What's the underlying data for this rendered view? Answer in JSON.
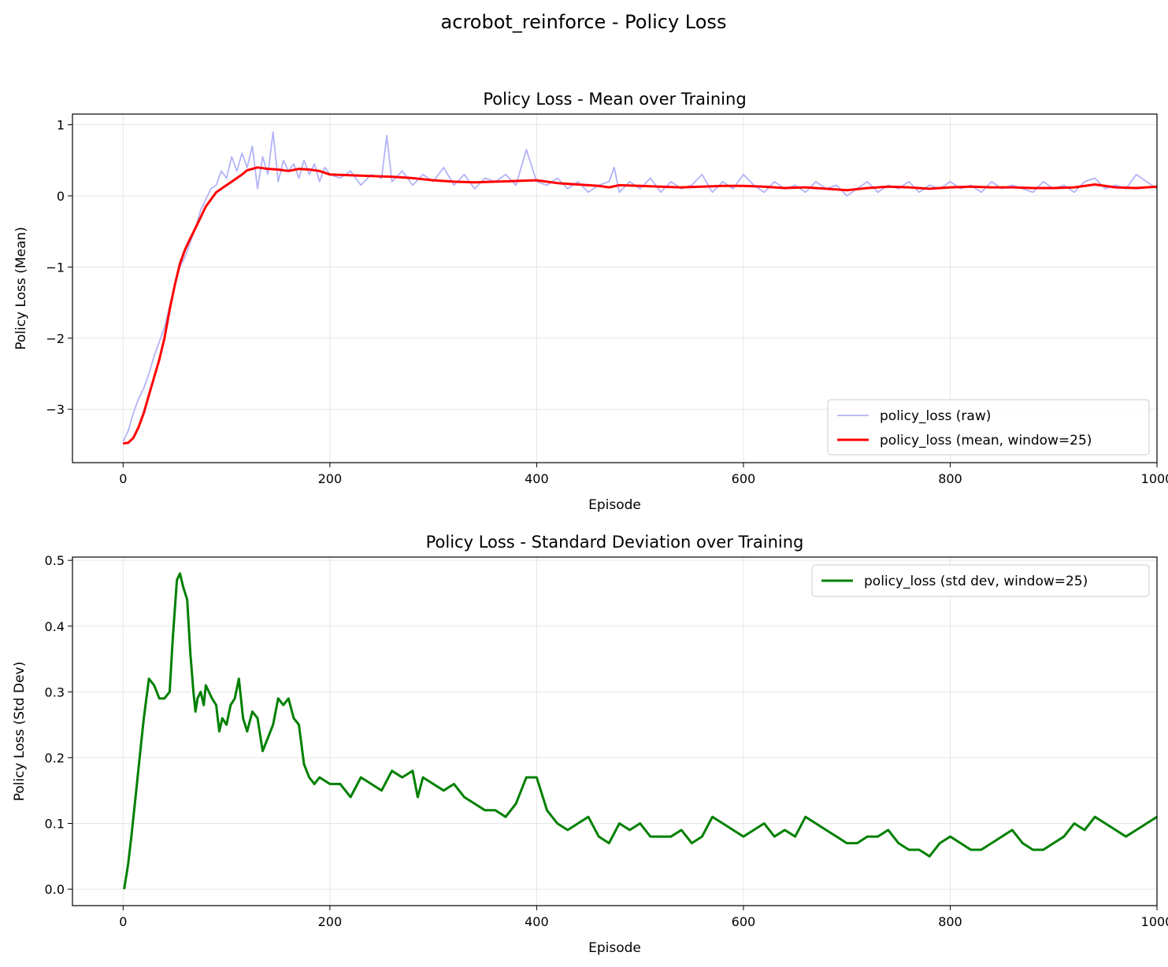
{
  "figure": {
    "title": "acrobot_reinforce - Policy Loss"
  },
  "chart_data": [
    {
      "type": "line",
      "title": "Policy Loss - Mean over Training",
      "xlabel": "Episode",
      "ylabel": "Policy Loss (Mean)",
      "xlim": [
        -49,
        1000
      ],
      "ylim": [
        -3.75,
        1.15
      ],
      "xticks": [
        0,
        200,
        400,
        600,
        800,
        1000
      ],
      "yticks": [
        -3,
        -2,
        -1,
        0,
        1
      ],
      "ytick_labels": [
        "−3",
        "−2",
        "−1",
        "0",
        "1"
      ],
      "grid": true,
      "legend_position": "lower right",
      "series": [
        {
          "name": "policy_loss (raw)",
          "color": "#b3b3f7",
          "linewidth": 1.8,
          "x": [
            0,
            5,
            10,
            15,
            20,
            25,
            30,
            35,
            40,
            45,
            50,
            55,
            60,
            65,
            70,
            75,
            80,
            85,
            90,
            95,
            100,
            105,
            110,
            115,
            120,
            125,
            130,
            135,
            140,
            145,
            150,
            155,
            160,
            165,
            170,
            175,
            180,
            185,
            190,
            195,
            200,
            210,
            220,
            230,
            240,
            250,
            255,
            260,
            270,
            280,
            290,
            300,
            310,
            320,
            330,
            340,
            350,
            360,
            370,
            380,
            390,
            400,
            410,
            420,
            430,
            440,
            450,
            460,
            470,
            475,
            480,
            490,
            500,
            510,
            520,
            530,
            540,
            550,
            560,
            570,
            580,
            590,
            600,
            610,
            620,
            630,
            640,
            650,
            660,
            670,
            680,
            690,
            700,
            710,
            720,
            730,
            740,
            750,
            760,
            770,
            780,
            790,
            800,
            810,
            820,
            830,
            840,
            850,
            860,
            870,
            880,
            890,
            900,
            910,
            920,
            930,
            940,
            950,
            960,
            970,
            980,
            990,
            1000
          ],
          "y": [
            -3.45,
            -3.3,
            -3.05,
            -2.85,
            -2.7,
            -2.5,
            -2.25,
            -2.05,
            -1.85,
            -1.55,
            -1.25,
            -1.0,
            -0.85,
            -0.65,
            -0.45,
            -0.2,
            -0.05,
            0.1,
            0.15,
            0.35,
            0.25,
            0.55,
            0.35,
            0.6,
            0.4,
            0.7,
            0.1,
            0.55,
            0.3,
            0.9,
            0.2,
            0.5,
            0.35,
            0.45,
            0.25,
            0.5,
            0.3,
            0.45,
            0.2,
            0.4,
            0.3,
            0.25,
            0.35,
            0.15,
            0.3,
            0.25,
            0.85,
            0.2,
            0.35,
            0.15,
            0.3,
            0.2,
            0.4,
            0.15,
            0.3,
            0.1,
            0.25,
            0.2,
            0.3,
            0.15,
            0.65,
            0.2,
            0.15,
            0.25,
            0.1,
            0.2,
            0.05,
            0.15,
            0.2,
            0.4,
            0.05,
            0.2,
            0.1,
            0.25,
            0.05,
            0.2,
            0.1,
            0.15,
            0.3,
            0.05,
            0.2,
            0.1,
            0.3,
            0.15,
            0.05,
            0.2,
            0.1,
            0.15,
            0.05,
            0.2,
            0.1,
            0.15,
            0.0,
            0.1,
            0.2,
            0.05,
            0.15,
            0.1,
            0.2,
            0.05,
            0.15,
            0.1,
            0.2,
            0.1,
            0.15,
            0.05,
            0.2,
            0.1,
            0.15,
            0.1,
            0.05,
            0.2,
            0.1,
            0.15,
            0.05,
            0.2,
            0.25,
            0.1,
            0.15,
            0.1,
            0.3,
            0.2,
            0.1
          ]
        },
        {
          "name": "policy_loss (mean, window=25)",
          "color": "#ff0000",
          "linewidth": 3,
          "x": [
            0,
            5,
            10,
            15,
            20,
            25,
            30,
            35,
            40,
            45,
            50,
            55,
            60,
            65,
            70,
            75,
            80,
            85,
            90,
            95,
            100,
            105,
            110,
            115,
            120,
            130,
            140,
            150,
            160,
            170,
            180,
            190,
            200,
            220,
            240,
            260,
            280,
            300,
            320,
            340,
            360,
            380,
            400,
            420,
            440,
            460,
            470,
            480,
            500,
            520,
            540,
            560,
            580,
            600,
            620,
            640,
            660,
            680,
            700,
            720,
            740,
            760,
            780,
            800,
            820,
            840,
            860,
            880,
            900,
            920,
            940,
            960,
            980,
            1000
          ],
          "y": [
            -3.48,
            -3.47,
            -3.4,
            -3.25,
            -3.05,
            -2.8,
            -2.55,
            -2.3,
            -2.0,
            -1.6,
            -1.25,
            -0.95,
            -0.75,
            -0.6,
            -0.45,
            -0.3,
            -0.15,
            -0.05,
            0.05,
            0.1,
            0.15,
            0.2,
            0.25,
            0.3,
            0.36,
            0.4,
            0.38,
            0.37,
            0.35,
            0.38,
            0.37,
            0.35,
            0.3,
            0.29,
            0.28,
            0.27,
            0.25,
            0.22,
            0.2,
            0.19,
            0.2,
            0.21,
            0.22,
            0.18,
            0.16,
            0.14,
            0.12,
            0.15,
            0.14,
            0.13,
            0.12,
            0.13,
            0.14,
            0.14,
            0.13,
            0.11,
            0.12,
            0.1,
            0.08,
            0.11,
            0.13,
            0.12,
            0.1,
            0.12,
            0.13,
            0.12,
            0.12,
            0.11,
            0.11,
            0.12,
            0.16,
            0.12,
            0.11,
            0.13
          ]
        }
      ]
    },
    {
      "type": "line",
      "title": "Policy Loss - Standard Deviation over Training",
      "xlabel": "Episode",
      "ylabel": "Policy Loss (Std Dev)",
      "xlim": [
        -49,
        1000
      ],
      "ylim": [
        -0.025,
        0.505
      ],
      "xticks": [
        0,
        200,
        400,
        600,
        800,
        1000
      ],
      "yticks": [
        0.0,
        0.1,
        0.2,
        0.3,
        0.4,
        0.5
      ],
      "ytick_labels": [
        "0.0",
        "0.1",
        "0.2",
        "0.3",
        "0.4",
        "0.5"
      ],
      "grid": true,
      "legend_position": "upper right",
      "series": [
        {
          "name": "policy_loss (std dev, window=25)",
          "color": "#008000",
          "linewidth": 3,
          "x": [
            1,
            3,
            5,
            8,
            12,
            16,
            20,
            25,
            30,
            35,
            40,
            45,
            48,
            52,
            55,
            58,
            62,
            65,
            68,
            70,
            72,
            75,
            78,
            80,
            83,
            86,
            90,
            93,
            96,
            100,
            104,
            108,
            112,
            116,
            120,
            125,
            130,
            135,
            140,
            145,
            150,
            155,
            160,
            165,
            170,
            175,
            180,
            185,
            190,
            200,
            210,
            220,
            230,
            240,
            250,
            260,
            270,
            280,
            285,
            290,
            300,
            310,
            320,
            330,
            340,
            350,
            360,
            370,
            380,
            390,
            400,
            410,
            420,
            430,
            440,
            450,
            460,
            470,
            480,
            490,
            500,
            510,
            520,
            530,
            540,
            550,
            560,
            570,
            580,
            590,
            600,
            610,
            620,
            630,
            640,
            650,
            660,
            670,
            680,
            690,
            700,
            710,
            720,
            730,
            740,
            750,
            760,
            770,
            780,
            790,
            800,
            810,
            820,
            830,
            840,
            850,
            860,
            870,
            880,
            890,
            900,
            910,
            920,
            930,
            940,
            950,
            960,
            970,
            980,
            990,
            1000
          ],
          "y": [
            0.0,
            0.02,
            0.04,
            0.08,
            0.14,
            0.2,
            0.26,
            0.32,
            0.31,
            0.29,
            0.29,
            0.3,
            0.38,
            0.47,
            0.48,
            0.46,
            0.44,
            0.36,
            0.3,
            0.27,
            0.29,
            0.3,
            0.28,
            0.31,
            0.3,
            0.29,
            0.28,
            0.24,
            0.26,
            0.25,
            0.28,
            0.29,
            0.32,
            0.26,
            0.24,
            0.27,
            0.26,
            0.21,
            0.23,
            0.25,
            0.29,
            0.28,
            0.29,
            0.26,
            0.25,
            0.19,
            0.17,
            0.16,
            0.17,
            0.16,
            0.16,
            0.14,
            0.17,
            0.16,
            0.15,
            0.18,
            0.17,
            0.18,
            0.14,
            0.17,
            0.16,
            0.15,
            0.16,
            0.14,
            0.13,
            0.12,
            0.12,
            0.11,
            0.13,
            0.17,
            0.17,
            0.12,
            0.1,
            0.09,
            0.1,
            0.11,
            0.08,
            0.07,
            0.1,
            0.09,
            0.1,
            0.08,
            0.08,
            0.08,
            0.09,
            0.07,
            0.08,
            0.11,
            0.1,
            0.09,
            0.08,
            0.09,
            0.1,
            0.08,
            0.09,
            0.08,
            0.11,
            0.1,
            0.09,
            0.08,
            0.07,
            0.07,
            0.08,
            0.08,
            0.09,
            0.07,
            0.06,
            0.06,
            0.05,
            0.07,
            0.08,
            0.07,
            0.06,
            0.06,
            0.07,
            0.08,
            0.09,
            0.07,
            0.06,
            0.06,
            0.07,
            0.08,
            0.1,
            0.09,
            0.11,
            0.1,
            0.09,
            0.08,
            0.09,
            0.1,
            0.11
          ]
        }
      ]
    }
  ]
}
